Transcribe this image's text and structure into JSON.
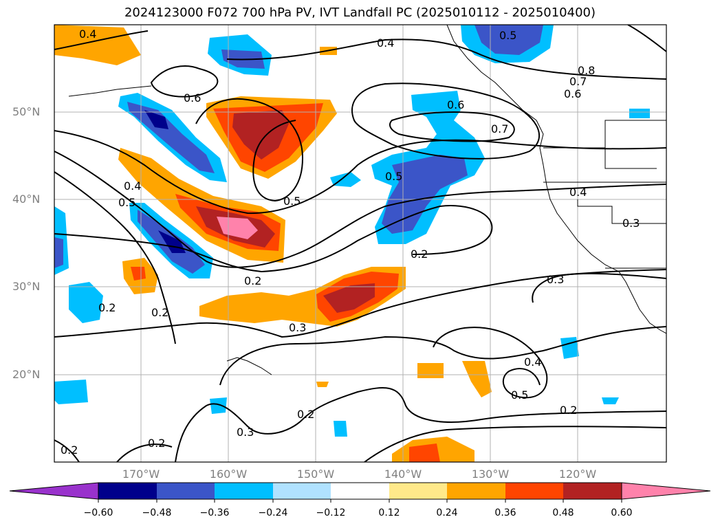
{
  "title": "2024123000 F072 700 hPa PV, IVT Landfall PC (2025010112 - 2025010400)",
  "map": {
    "lat_labels": [
      "50°N",
      "40°N",
      "30°N",
      "20°N"
    ],
    "lon_labels": [
      "170°W",
      "160°W",
      "150°W",
      "140°W",
      "130°W",
      "120°W"
    ],
    "contour_labels": [
      "0.4",
      "0.4",
      "0.5",
      "0.8",
      "0.7",
      "0.6",
      "0.6",
      "0.6",
      "0.7",
      "0.5",
      "0.5",
      "0.4",
      "0.4",
      "0.5",
      "0.3",
      "0.2",
      "0.2",
      "0.3",
      "0.3",
      "0.2",
      "0.2",
      "0.4",
      "0.5",
      "0.2",
      "0.2",
      "0.3",
      "0.2",
      "0.2"
    ]
  },
  "colorbar": {
    "ticks": [
      "−0.60",
      "−0.48",
      "−0.36",
      "−0.24",
      "−0.12",
      "0.12",
      "0.24",
      "0.36",
      "0.48",
      "0.60"
    ],
    "colors": [
      "#9932cc",
      "#00008b",
      "#3b55c8",
      "#00bfff",
      "#b0e2ff",
      "#ffffff",
      "#ffe98a",
      "#ffa500",
      "#ff4500",
      "#b22222",
      "#ff82ab"
    ]
  }
}
